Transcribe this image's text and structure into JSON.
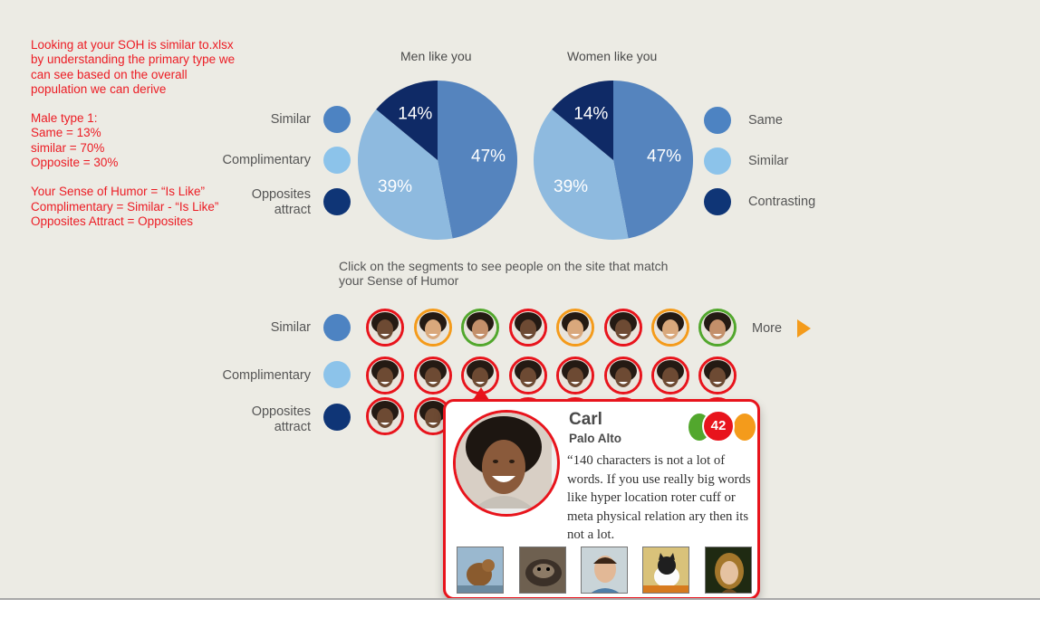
{
  "notes": {
    "p1": "Looking at your SOH is similar to.xlsx\nby understanding the primary type we\ncan see based on the overall\npopulation we can derive",
    "p2": "Male type 1:\nSame = 13%\nsimilar = 70%\nOpposite = 30%",
    "p3": "Your Sense of Humor = “Is Like”\nComplimentary = Similar - “Is Like”\nOpposites Attract = Opposites"
  },
  "charts": {
    "men_title": "Men like you",
    "women_title": "Women like you"
  },
  "chart_data": [
    {
      "type": "pie",
      "title": "Men like you",
      "slices": [
        {
          "label": "47%",
          "value": 47,
          "color": "#5584be"
        },
        {
          "label": "39%",
          "value": 39,
          "color": "#8ebadf"
        },
        {
          "label": "14%",
          "value": 14,
          "color": "#0f2a66"
        }
      ]
    },
    {
      "type": "pie",
      "title": "Women like you",
      "slices": [
        {
          "label": "47%",
          "value": 47,
          "color": "#5584be"
        },
        {
          "label": "39%",
          "value": 39,
          "color": "#8ebadf"
        },
        {
          "label": "14%",
          "value": 14,
          "color": "#0f2a66"
        }
      ]
    }
  ],
  "legend_left": {
    "similar": "Similar",
    "complimentary": "Complimentary",
    "opposites": "Opposites\nattract"
  },
  "legend_right": {
    "same": "Same",
    "similar": "Similar",
    "contrasting": "Contrasting"
  },
  "colors": {
    "mid_blue": "#4d83c2",
    "light_blue": "#8cc3ea",
    "dark_blue": "#0f3576",
    "red": "#e8141c",
    "orange": "#f49b1b",
    "green": "#52a72d"
  },
  "instructions": "Click on the segments to see people on the site that match\nyour Sense of Humor",
  "matches": {
    "row_labels": {
      "similar": "Similar",
      "complimentary": "Complimentary",
      "opposites": "Opposites\nattract"
    },
    "similar_borders": [
      "red",
      "orange",
      "green",
      "red",
      "orange",
      "red",
      "orange",
      "green"
    ],
    "more_label": "More",
    "more_icon": "play-arrow-icon"
  },
  "popup": {
    "name": "Carl",
    "location": "Palo Alto",
    "score": "42",
    "quote": "“140 characters is not a lot of words. If you use really big words like hyper location roter cuff or meta physical relation ary then its not a lot.",
    "thumbs": [
      "squirrel-photo",
      "raccoon-photo",
      "person-photo",
      "kitten-photo",
      "woman-photo"
    ]
  }
}
